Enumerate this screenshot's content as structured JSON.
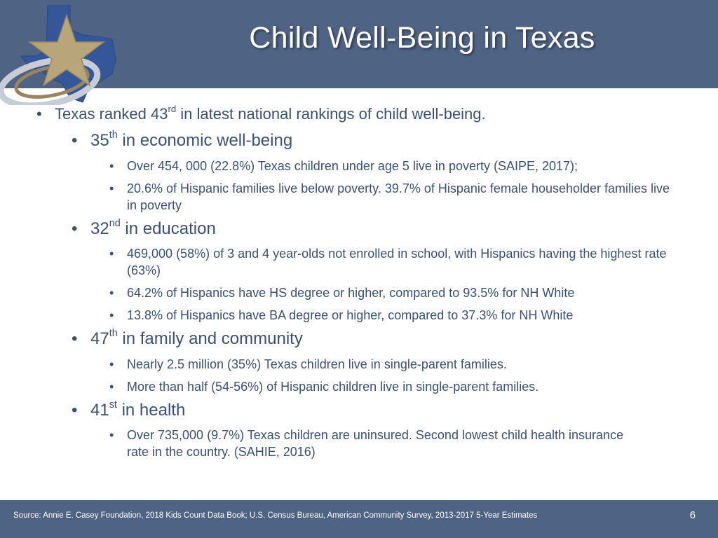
{
  "title": "Child Well-Being in Texas",
  "bullets": {
    "ranked_pre": "Texas ranked 43",
    "ranked_sup": "rd",
    "ranked_post": " in latest national rankings of child well-being.",
    "economic": {
      "num": "35",
      "sup": "th",
      "label": " in economic well-being",
      "items": [
        "Over 454, 000 (22.8%) Texas children under age 5 live in poverty (SAIPE, 2017);",
        "20.6% of Hispanic families live below poverty. 39.7% of Hispanic female householder families live in poverty"
      ]
    },
    "education": {
      "num": "32",
      "sup": "nd",
      "label": " in education",
      "items": [
        "469,000 (58%) of 3 and 4 year-olds not enrolled in school, with Hispanics having the highest rate (63%)",
        "64.2% of Hispanics have HS degree or higher, compared to 93.5% for NH White",
        "13.8% of Hispanics have BA degree or higher, compared to  37.3% for NH White"
      ]
    },
    "family": {
      "num": "47",
      "sup": "th",
      "label": " in family and community",
      "items": [
        "Nearly 2.5 million (35%) Texas children live in single-parent families.",
        "More than half (54-56%) of Hispanic children live in single-parent families."
      ]
    },
    "health": {
      "num": "41",
      "sup": "st",
      "label": " in health",
      "items": [
        "Over 735,000 (9.7%) Texas children are uninsured. Second lowest child health insurance rate in the country. (SAHIE, 2016)"
      ]
    }
  },
  "footer": {
    "source": "Source: Annie E. Casey Foundation, 2018 Kids Count Data Book; U.S. Census Bureau, American Community Survey, 2013-2017 5-Year Estimates",
    "page_number": "6"
  },
  "colors": {
    "header_band": "#4f6384",
    "body_text": "#3b5172",
    "star": "#b9a57a",
    "texas": "#35579a"
  }
}
